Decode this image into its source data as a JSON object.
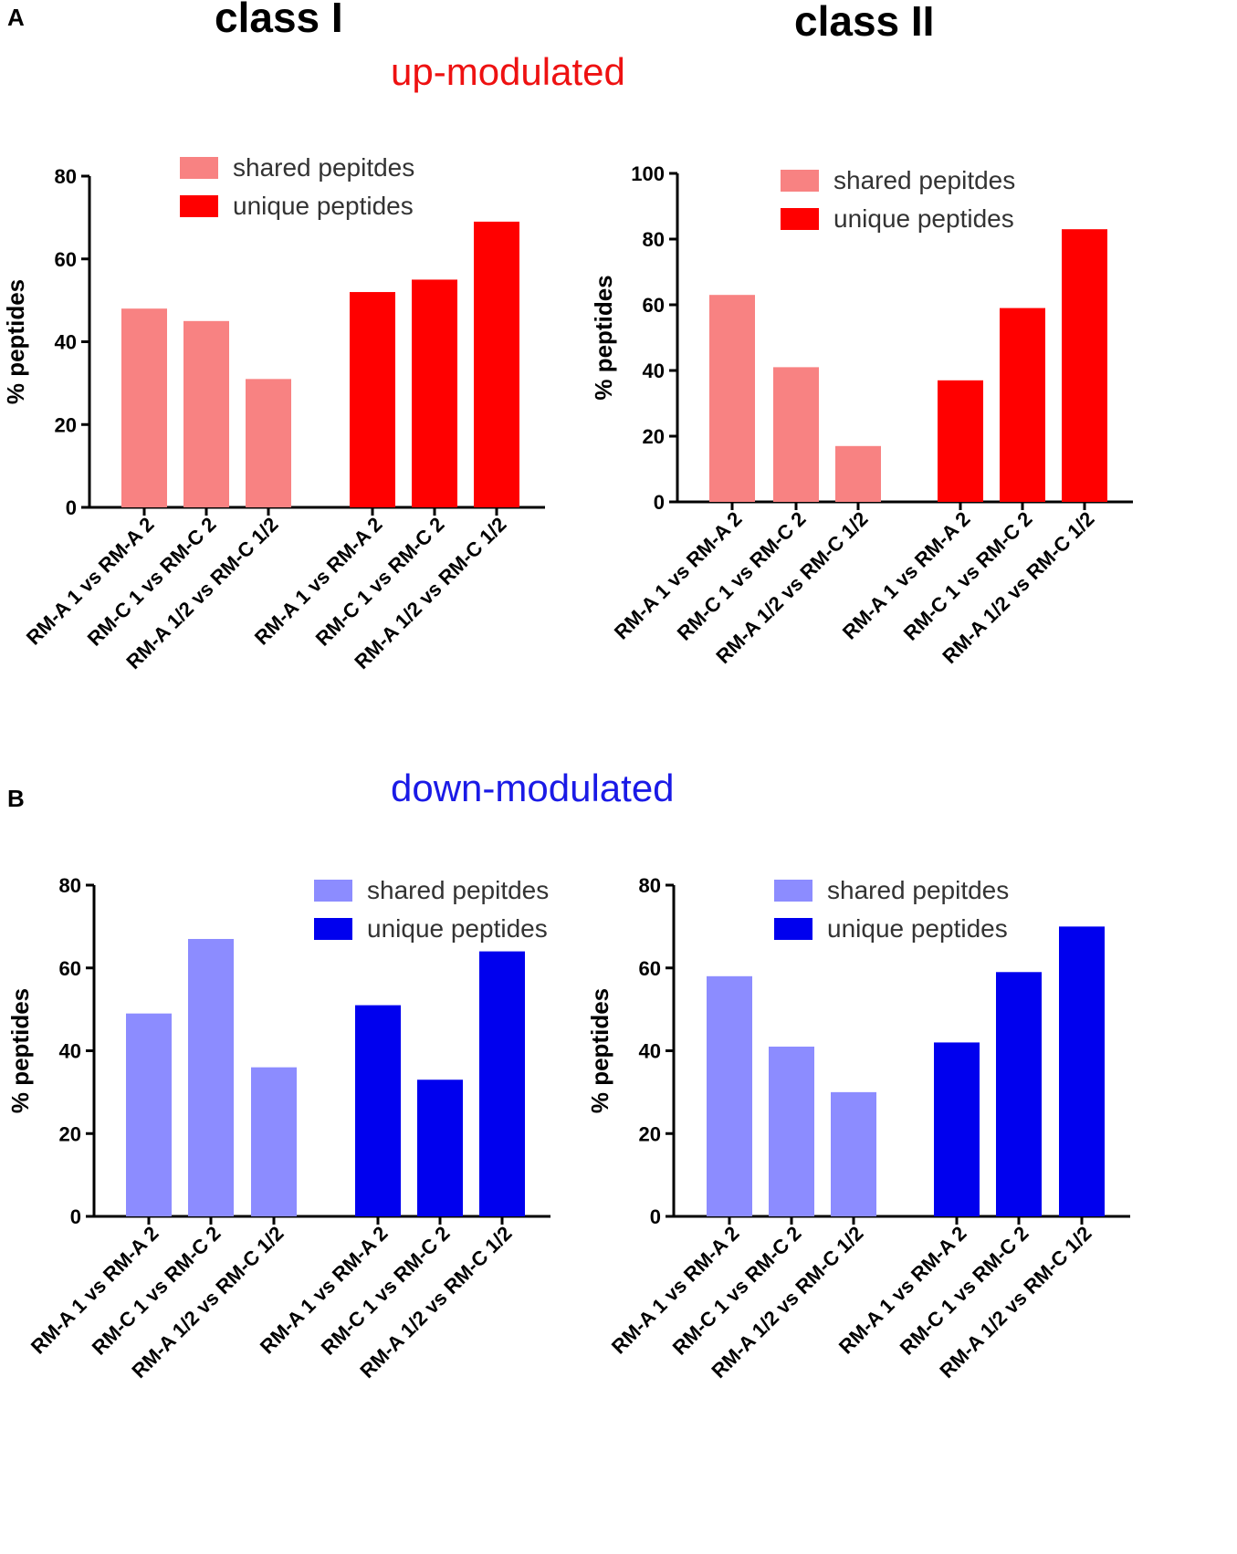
{
  "panels": {
    "a": "A",
    "b": "B"
  },
  "headers": {
    "class_one": "class I",
    "class_two": "class II",
    "up": "up-modulated",
    "down": "down-modulated"
  },
  "colors": {
    "up_title": "#ee1111",
    "down_title": "#1a1ae6",
    "up_shared": "#f88282",
    "up_unique": "#ff0000",
    "down_shared": "#8c8cff",
    "down_unique": "#0000ee"
  },
  "chart_data": [
    {
      "type": "bar",
      "title": "class I up-modulated",
      "ylabel": "% peptides",
      "xlabel": "",
      "ylim": [
        0,
        80
      ],
      "yticks": [
        0,
        20,
        40,
        60,
        80
      ],
      "categories": [
        "RM-A 1 vs RM-A 2",
        "RM-C 1 vs RM-C 2",
        "RM-A 1/2 vs RM-C 1/2"
      ],
      "legend_position": "top",
      "series": [
        {
          "name": "shared pepitdes",
          "values": [
            48,
            45,
            31
          ]
        },
        {
          "name": "unique peptides",
          "values": [
            52,
            55,
            69
          ]
        }
      ]
    },
    {
      "type": "bar",
      "title": "class II up-modulated",
      "ylabel": "% peptides",
      "xlabel": "",
      "ylim": [
        0,
        100
      ],
      "yticks": [
        0,
        20,
        40,
        60,
        80,
        100
      ],
      "categories": [
        "RM-A 1 vs RM-A 2",
        "RM-C 1 vs RM-C 2",
        "RM-A 1/2 vs RM-C 1/2"
      ],
      "legend_position": "top",
      "series": [
        {
          "name": "shared pepitdes",
          "values": [
            63,
            41,
            17
          ]
        },
        {
          "name": "unique peptides",
          "values": [
            37,
            59,
            83
          ]
        }
      ]
    },
    {
      "type": "bar",
      "title": "class I down-modulated",
      "ylabel": "% peptides",
      "xlabel": "",
      "ylim": [
        0,
        80
      ],
      "yticks": [
        0,
        20,
        40,
        60,
        80
      ],
      "categories": [
        "RM-A 1 vs RM-A 2",
        "RM-C 1 vs RM-C 2",
        "RM-A 1/2 vs RM-C 1/2"
      ],
      "legend_position": "top-right",
      "series": [
        {
          "name": "shared pepitdes",
          "values": [
            49,
            67,
            36
          ]
        },
        {
          "name": "unique peptides",
          "values": [
            51,
            33,
            64
          ]
        }
      ]
    },
    {
      "type": "bar",
      "title": "class II down-modulated",
      "ylabel": "% peptides",
      "xlabel": "",
      "ylim": [
        0,
        80
      ],
      "yticks": [
        0,
        20,
        40,
        60,
        80
      ],
      "categories": [
        "RM-A 1 vs RM-A 2",
        "RM-C 1 vs RM-C 2",
        "RM-A 1/2 vs RM-C 1/2"
      ],
      "legend_position": "top",
      "series": [
        {
          "name": "shared pepitdes",
          "values": [
            58,
            41,
            30
          ]
        },
        {
          "name": "unique peptides",
          "values": [
            42,
            59,
            70
          ]
        }
      ]
    }
  ]
}
